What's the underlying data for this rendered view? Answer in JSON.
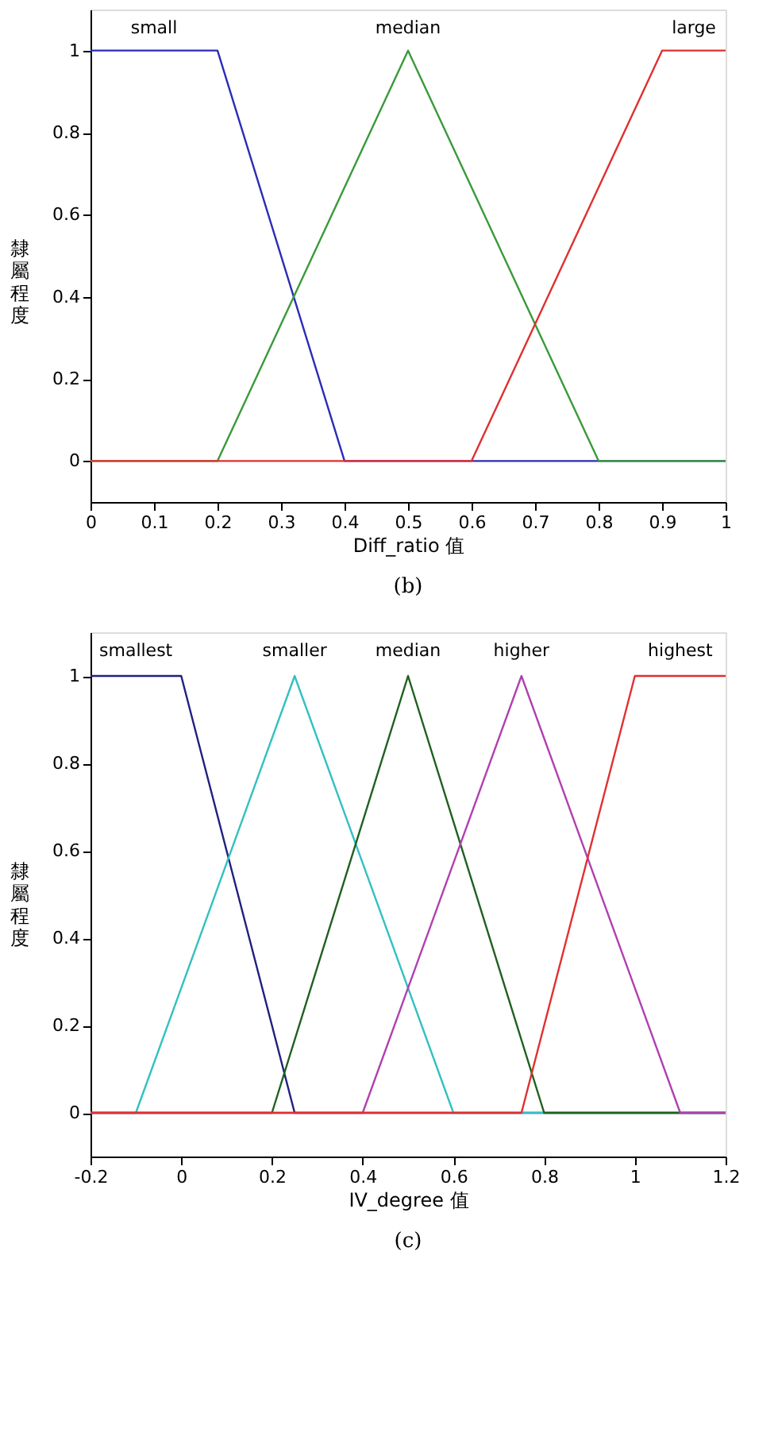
{
  "chart_data": [
    {
      "type": "line",
      "title": "(b)",
      "xlabel": "Diff_ratio 值",
      "ylabel": "隸屬程度",
      "xlim": [
        0,
        1
      ],
      "ylim": [
        -0.1,
        1.1
      ],
      "xticks": [
        0,
        0.1,
        0.2,
        0.3,
        0.4,
        0.5,
        0.6,
        0.7,
        0.8,
        0.9,
        1
      ],
      "yticks": [
        0,
        0.2,
        0.4,
        0.6,
        0.8,
        1
      ],
      "grid": false,
      "legend": false,
      "marker": "none",
      "line_style": "solid",
      "series": [
        {
          "name": "small",
          "color": "#2b2bb8",
          "x": [
            0,
            0.2,
            0.4,
            1
          ],
          "values": [
            1,
            1,
            0,
            0
          ]
        },
        {
          "name": "median",
          "color": "#3a9a3a",
          "x": [
            0,
            0.2,
            0.5,
            0.8,
            1
          ],
          "values": [
            0,
            0,
            1,
            0,
            0
          ]
        },
        {
          "name": "large",
          "color": "#e03030",
          "x": [
            0,
            0.6,
            0.9,
            1
          ],
          "values": [
            0,
            0,
            1,
            1
          ]
        }
      ]
    },
    {
      "type": "line",
      "title": "(c)",
      "xlabel": "IV_degree 值",
      "ylabel": "隸屬程度",
      "xlim": [
        -0.2,
        1.2
      ],
      "ylim": [
        -0.1,
        1.1
      ],
      "xticks": [
        -0.2,
        0,
        0.2,
        0.4,
        0.6,
        0.8,
        1,
        1.2
      ],
      "yticks": [
        0,
        0.2,
        0.4,
        0.6,
        0.8,
        1
      ],
      "grid": false,
      "legend": false,
      "marker": "none",
      "line_style": "solid",
      "series": [
        {
          "name": "smallest",
          "color": "#202080",
          "x": [
            -0.2,
            0,
            0.25,
            1.2
          ],
          "values": [
            1,
            1,
            0,
            0
          ]
        },
        {
          "name": "smaller",
          "color": "#33c0c0",
          "x": [
            -0.2,
            -0.1,
            0.25,
            0.6,
            1.2
          ],
          "values": [
            0,
            0,
            1,
            0,
            0
          ]
        },
        {
          "name": "median",
          "color": "#206020",
          "x": [
            -0.2,
            0.2,
            0.5,
            0.8,
            1.2
          ],
          "values": [
            0,
            0,
            1,
            0,
            0
          ]
        },
        {
          "name": "higher",
          "color": "#b040b0",
          "x": [
            -0.2,
            0.4,
            0.75,
            1.1,
            1.2
          ],
          "values": [
            0,
            0,
            1,
            0,
            0
          ]
        },
        {
          "name": "highest",
          "color": "#e03030",
          "x": [
            -0.2,
            0.75,
            1,
            1.2
          ],
          "values": [
            0,
            0,
            1,
            1
          ]
        }
      ]
    }
  ]
}
